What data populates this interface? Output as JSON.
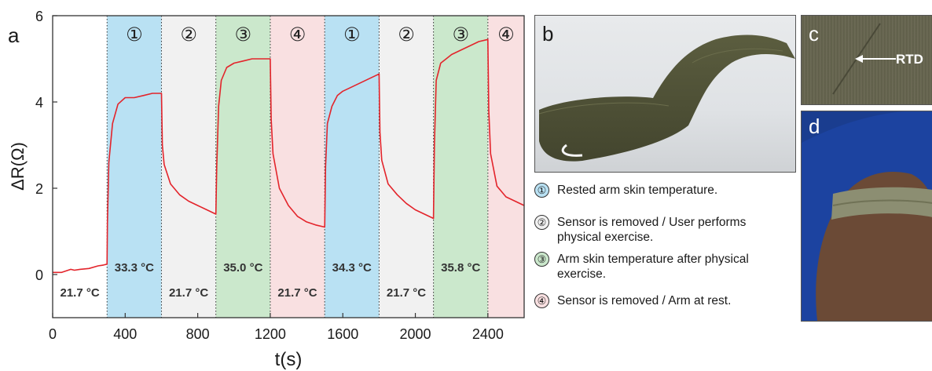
{
  "panel_labels": {
    "a": "a",
    "b": "b",
    "c": "c",
    "d": "d"
  },
  "chart_data": {
    "type": "line",
    "xlabel": "t(s)",
    "ylabel": "ΔR(Ω)",
    "xlim": [
      0,
      2600
    ],
    "ylim": [
      -1,
      6
    ],
    "xticks": [
      0,
      400,
      800,
      1200,
      1600,
      2000,
      2400
    ],
    "yticks": [
      0,
      2,
      4,
      6
    ],
    "line_color": "#e3242b",
    "phases": [
      {
        "start": 300,
        "end": 600,
        "marker": "①",
        "temp": "33.3 °C",
        "color": "#b9e1f3"
      },
      {
        "start": 600,
        "end": 900,
        "marker": "②",
        "temp": "21.7 °C",
        "color": "#f1f1f1"
      },
      {
        "start": 900,
        "end": 1200,
        "marker": "③",
        "temp": "35.0 °C",
        "color": "#cbe8cc"
      },
      {
        "start": 1200,
        "end": 1500,
        "marker": "④",
        "temp": "21.7 °C",
        "color": "#f9e0e1"
      },
      {
        "start": 1500,
        "end": 1800,
        "marker": "①",
        "temp": "34.3 °C",
        "color": "#b9e1f3"
      },
      {
        "start": 1800,
        "end": 2100,
        "marker": "②",
        "temp": "21.7 °C",
        "color": "#f1f1f1"
      },
      {
        "start": 2100,
        "end": 2400,
        "marker": "③",
        "temp": "35.8 °C",
        "color": "#cbe8cc"
      },
      {
        "start": 2400,
        "end": 2600,
        "marker": "④",
        "temp": "",
        "color": "#f9e0e1"
      }
    ],
    "initial_temp": "21.7 °C",
    "series": [
      {
        "x": [
          0,
          50,
          100,
          120,
          150,
          200,
          250,
          280,
          300,
          302,
          310,
          330,
          360,
          400,
          450,
          500,
          550,
          600,
          605,
          615,
          650,
          700,
          750,
          800,
          850,
          900,
          905,
          915,
          930,
          960,
          1000,
          1050,
          1100,
          1150,
          1200,
          1205,
          1215,
          1250,
          1300,
          1350,
          1400,
          1450,
          1500,
          1505,
          1515,
          1540,
          1570,
          1600,
          1650,
          1700,
          1750,
          1800,
          1805,
          1815,
          1850,
          1900,
          1950,
          2000,
          2050,
          2100,
          2105,
          2115,
          2140,
          2170,
          2200,
          2250,
          2300,
          2350,
          2400,
          2405,
          2415,
          2450,
          2500,
          2550,
          2600
        ],
        "y": [
          0.05,
          0.05,
          0.12,
          0.1,
          0.12,
          0.14,
          0.2,
          0.22,
          0.24,
          1.2,
          2.6,
          3.5,
          3.95,
          4.1,
          4.1,
          4.15,
          4.2,
          4.2,
          3.0,
          2.55,
          2.1,
          1.85,
          1.7,
          1.6,
          1.5,
          1.4,
          2.5,
          3.9,
          4.5,
          4.8,
          4.9,
          4.95,
          5.0,
          5.0,
          5.0,
          3.6,
          2.8,
          2.0,
          1.6,
          1.35,
          1.22,
          1.15,
          1.1,
          2.5,
          3.5,
          3.9,
          4.15,
          4.25,
          4.35,
          4.45,
          4.55,
          4.65,
          3.3,
          2.65,
          2.1,
          1.85,
          1.65,
          1.5,
          1.4,
          1.3,
          3.0,
          4.5,
          4.9,
          5.0,
          5.1,
          5.2,
          5.3,
          5.4,
          5.45,
          3.8,
          2.8,
          2.05,
          1.8,
          1.7,
          1.6
        ]
      }
    ]
  },
  "legend": [
    {
      "marker": "①",
      "text": "Rested arm skin temperature.",
      "color": "#b9e1f3"
    },
    {
      "marker": "②",
      "text": "Sensor is removed / User performs physical exercise.",
      "color": "#f1f1f1"
    },
    {
      "marker": "③",
      "text": "Arm skin temperature after physical exercise.",
      "color": "#cbe8cc"
    },
    {
      "marker": "④",
      "text": "Sensor is removed / Arm at rest.",
      "color": "#f9e0e1"
    }
  ],
  "photo_c_label": "RTD"
}
